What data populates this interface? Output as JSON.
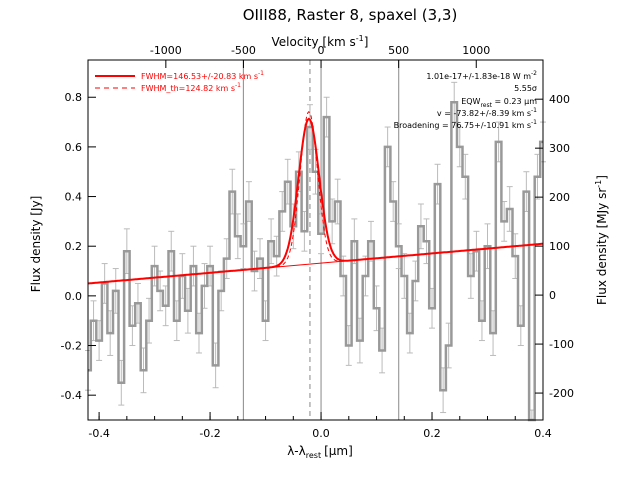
{
  "chart_data": {
    "type": "line",
    "title": "OIII88, Raster 8, spaxel (3,3)",
    "xlabel": "λ-λ",
    "xlabel_sub": "rest",
    "xlabel_unit": "[μm]",
    "ylabel": "Flux density [Jy]",
    "y2label": "Flux density [MJy sr",
    "y2label_sup": "-1",
    "y2label_end": "]",
    "x2label": "Velocity [km s",
    "x2label_sup": "-1",
    "x2label_end": "]",
    "xlim": [
      -0.42,
      0.4
    ],
    "ylim": [
      -0.5,
      0.95
    ],
    "y2lim": [
      -255,
      480
    ],
    "xticks": [
      -0.4,
      -0.2,
      0.0,
      0.2,
      0.4
    ],
    "xtick_labels": [
      "-0.4",
      "-0.2",
      "0.0",
      "0.2",
      "0.4"
    ],
    "yticks": [
      -0.4,
      -0.2,
      0.0,
      0.2,
      0.4,
      0.6,
      0.8
    ],
    "ytick_labels": [
      "-0.4",
      "-0.2",
      "0.0",
      "0.2",
      "0.4",
      "0.6",
      "0.8"
    ],
    "x2ticks": [
      -1000,
      -500,
      0,
      500,
      1000
    ],
    "x2tick_labels": [
      "-1000",
      "-500",
      "0",
      "500",
      "1000"
    ],
    "y2ticks": [
      -200,
      -100,
      0,
      100,
      200,
      300,
      400
    ],
    "y2tick_labels": [
      "-200",
      "-100",
      "0",
      "100",
      "200",
      "300",
      "400"
    ],
    "grid": false,
    "vlines_solid": [
      -0.14,
      0.0,
      0.14
    ],
    "vline_dashed": -0.02,
    "legend": {
      "position": "top-left",
      "entries": [
        {
          "label": "FWHM=146.53+/-20.83 km s",
          "sup": "-1",
          "style": "solid",
          "color": "#ff0000"
        },
        {
          "label": "FWHM_th=124.82 km s",
          "sup": "-1",
          "style": "dashed",
          "color": "#ff0000"
        }
      ]
    },
    "annotations": [
      {
        "text": "1.01e-17+/-1.83e-18 W m",
        "sup": "-2"
      },
      {
        "text": "5.55σ",
        "sup": ""
      },
      {
        "text": "EQW",
        "sub": "rest",
        "text2": " = 0.23 μm",
        "sup": ""
      },
      {
        "text": "v = -73.82+/-8.39 km s",
        "sup": "-1"
      },
      {
        "text": "Broadening = 76.75+/-10.91 km s",
        "sup": "-1"
      }
    ],
    "series": [
      {
        "style": "steps",
        "color": "#999999",
        "x": [
          -0.42,
          -0.41,
          -0.4,
          -0.39,
          -0.38,
          -0.37,
          -0.36,
          -0.35,
          -0.34,
          -0.33,
          -0.32,
          -0.31,
          -0.3,
          -0.29,
          -0.28,
          -0.27,
          -0.26,
          -0.25,
          -0.24,
          -0.23,
          -0.22,
          -0.21,
          -0.2,
          -0.19,
          -0.18,
          -0.17,
          -0.16,
          -0.15,
          -0.14,
          -0.13,
          -0.12,
          -0.11,
          -0.1,
          -0.09,
          -0.08,
          -0.07,
          -0.06,
          -0.05,
          -0.04,
          -0.03,
          -0.02,
          -0.01,
          0.0,
          0.01,
          0.02,
          0.03,
          0.04,
          0.05,
          0.06,
          0.07,
          0.08,
          0.09,
          0.1,
          0.11,
          0.12,
          0.13,
          0.14,
          0.15,
          0.16,
          0.17,
          0.18,
          0.19,
          0.2,
          0.21,
          0.22,
          0.23,
          0.24,
          0.25,
          0.26,
          0.27,
          0.28,
          0.29,
          0.3,
          0.31,
          0.32,
          0.33,
          0.34,
          0.35,
          0.36,
          0.37,
          0.38,
          0.39,
          0.4
        ],
        "y": [
          -0.3,
          -0.1,
          -0.18,
          0.05,
          -0.15,
          0.02,
          -0.35,
          0.18,
          -0.12,
          -0.03,
          -0.3,
          -0.1,
          0.12,
          0.02,
          -0.04,
          0.18,
          -0.1,
          0.08,
          -0.06,
          0.12,
          -0.15,
          0.04,
          0.12,
          -0.28,
          0.02,
          0.15,
          0.42,
          0.24,
          0.2,
          0.38,
          0.1,
          0.15,
          -0.1,
          0.22,
          0.16,
          0.34,
          0.46,
          0.28,
          0.5,
          0.26,
          0.68,
          0.5,
          0.25,
          0.72,
          0.3,
          0.38,
          0.08,
          -0.2,
          0.22,
          -0.18,
          0.08,
          0.22,
          -0.05,
          -0.22,
          0.6,
          0.38,
          0.2,
          0.08,
          -0.15,
          0.06,
          0.28,
          0.22,
          -0.05,
          0.45,
          -0.38,
          -0.2,
          0.78,
          0.6,
          0.48,
          0.08,
          0.18,
          -0.1,
          0.2,
          -0.15,
          0.62,
          0.3,
          0.35,
          0.16,
          -0.12,
          0.42,
          -0.55,
          0.48,
          0.62
        ],
        "err": [
          0.08,
          0.08,
          0.08,
          0.08,
          0.09,
          0.09,
          0.09,
          0.09,
          0.08,
          0.08,
          0.09,
          0.09,
          0.08,
          0.08,
          0.08,
          0.08,
          0.08,
          0.09,
          0.09,
          0.08,
          0.08,
          0.09,
          0.08,
          0.09,
          0.08,
          0.08,
          0.09,
          0.09,
          0.09,
          0.08,
          0.08,
          0.08,
          0.08,
          0.09,
          0.08,
          0.08,
          0.09,
          0.09,
          0.08,
          0.08,
          0.09,
          0.09,
          0.08,
          0.08,
          0.09,
          0.09,
          0.08,
          0.08,
          0.09,
          0.09,
          0.08,
          0.08,
          0.09,
          0.09,
          0.08,
          0.08,
          0.09,
          0.09,
          0.08,
          0.08,
          0.09,
          0.09,
          0.08,
          0.08,
          0.09,
          0.09,
          0.08,
          0.08,
          0.09,
          0.09,
          0.08,
          0.08,
          0.09,
          0.09,
          0.08,
          0.08,
          0.09,
          0.09,
          0.08,
          0.08,
          0.09,
          0.09,
          0.08
        ]
      },
      {
        "style": "line",
        "color": "#ff0000",
        "kind": "gaussian-fit",
        "continuum": {
          "x0": -0.42,
          "y0": 0.05,
          "x1": 0.4,
          "y1": 0.21
        },
        "center": -0.022,
        "amplitude": 0.585,
        "sigma": 0.0185
      }
    ]
  }
}
